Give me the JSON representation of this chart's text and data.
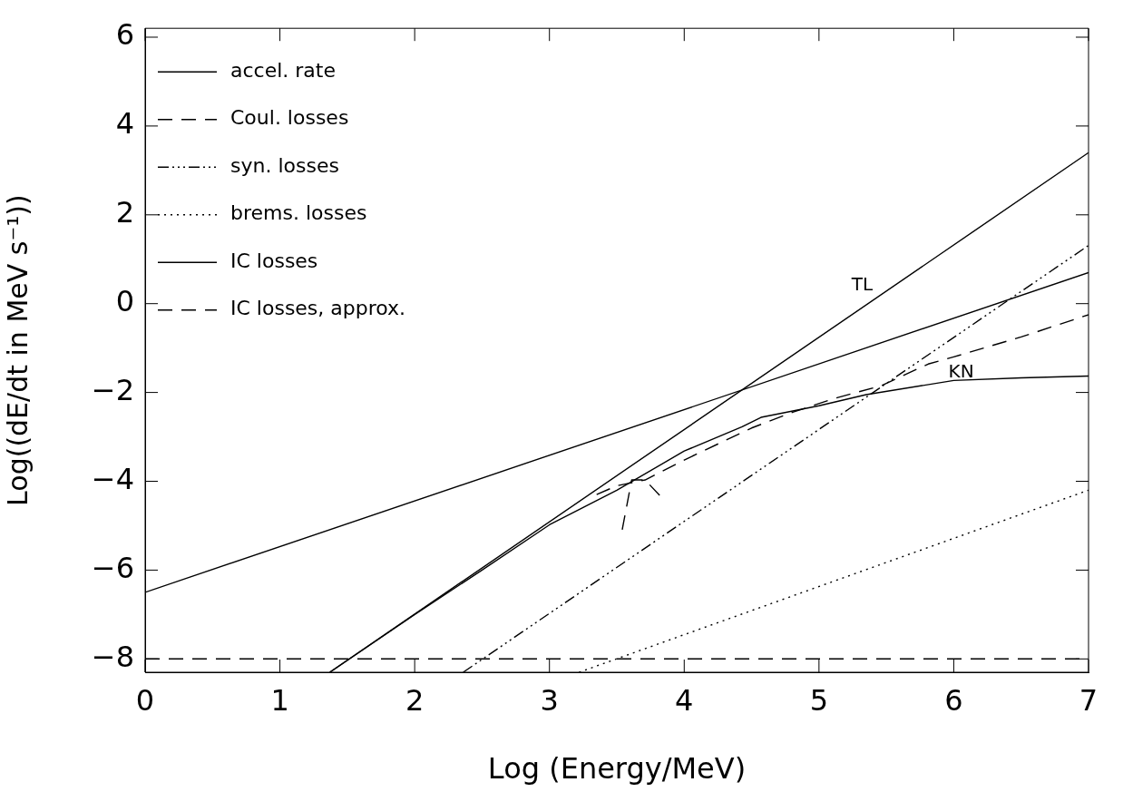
{
  "chart_data": {
    "type": "line",
    "xlabel": "Log (Energy/MeV)",
    "ylabel": "Log((dE/dt in MeV s⁻¹))",
    "xlim": [
      0,
      7
    ],
    "xticks": [
      0,
      1,
      2,
      3,
      4,
      5,
      6,
      7
    ],
    "ylim": [
      -8.3,
      6.2
    ],
    "yticks": [
      -8,
      -6,
      -4,
      -2,
      0,
      2,
      4,
      6
    ],
    "grid": false,
    "legend": "top left",
    "marker": "none",
    "series": [
      {
        "name": "accel. rate",
        "color": "#000000",
        "line_style": "solid",
        "x": [
          0,
          7
        ],
        "values": [
          -6.5,
          0.7
        ]
      },
      {
        "name": "Coul. losses",
        "color": "#000000",
        "line_style": "dashed",
        "x": [
          0,
          7
        ],
        "values": [
          -8,
          -8
        ]
      },
      {
        "name": "syn. losses",
        "color": "#000000",
        "line_style": "dashdot",
        "x": [
          2.36,
          7
        ],
        "values": [
          -8.3,
          1.31
        ]
      },
      {
        "name": "brems. losses",
        "color": "#000000",
        "line_style": "dotted",
        "x": [
          3.22,
          7
        ],
        "values": [
          -8.3,
          -4.2
        ]
      },
      {
        "name": "IC losses",
        "color": "#000000",
        "line_style": "solid",
        "x": [
          1.37,
          2,
          2.5,
          3,
          3.5,
          4,
          4.43,
          4.57,
          5,
          5.35,
          6,
          6.5,
          7
        ],
        "values": [
          -8.3,
          -7.0,
          -6.0,
          -4.98,
          -4.2,
          -3.32,
          -2.77,
          -2.56,
          -2.3,
          -2.05,
          -1.73,
          -1.67,
          -1.63
        ]
      },
      {
        "name": "IC losses, approx.",
        "color": "#000000",
        "line_style": "dashed",
        "x": [
          3.35,
          3.5,
          3.71,
          4,
          4.5,
          4.81,
          5.12,
          5.46,
          5.81,
          6,
          6.5,
          7
        ],
        "values": [
          -4.3,
          -4.1,
          -3.97,
          -3.52,
          -2.8,
          -2.44,
          -2.13,
          -1.85,
          -1.36,
          -1.2,
          -0.75,
          -0.25
        ]
      },
      {
        "color": "#000000",
        "line_style": "dashed",
        "x": [
          3.54,
          3.61,
          3.71,
          3.84
        ],
        "values": [
          -5.09,
          -3.97,
          -3.97,
          -4.39
        ]
      },
      {
        "color": "#000000",
        "line_style": "solid",
        "x": [
          1.37,
          7
        ],
        "values": [
          -8.3,
          3.4
        ]
      }
    ],
    "annotations": [
      "TL",
      "KN"
    ]
  }
}
